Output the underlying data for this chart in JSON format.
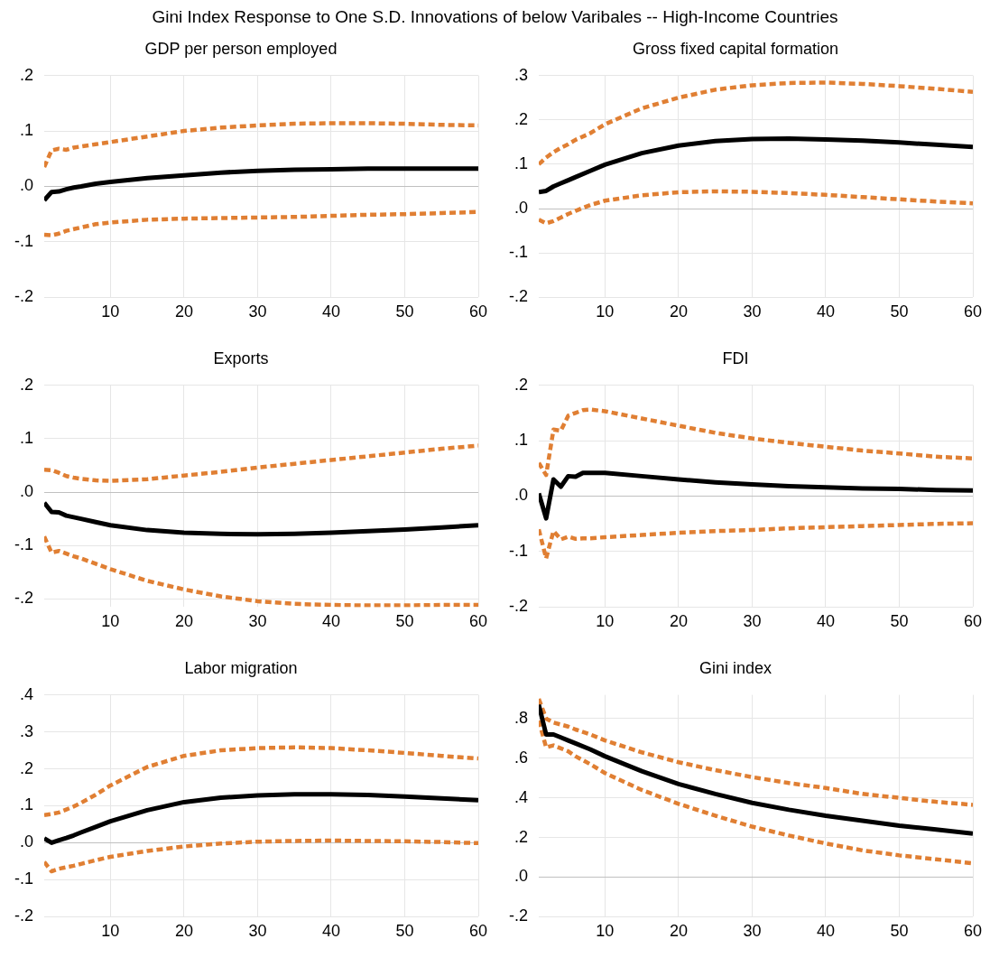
{
  "chart_data": [
    {
      "type": "line",
      "title": "GDP per person employed",
      "annotations": [
        "Gini Index Response to One S.D. Innovations of below Varibales -- High-Income Countries"
      ],
      "x": [
        1,
        2,
        3,
        4,
        5,
        6,
        8,
        10,
        15,
        20,
        25,
        30,
        35,
        40,
        45,
        50,
        55,
        60
      ],
      "xlim": [
        1,
        60
      ],
      "xticks": [
        10,
        20,
        30,
        40,
        50,
        60
      ],
      "ylim": [
        -0.2,
        0.2
      ],
      "yticks": [
        {
          "value": -0.2,
          "label": "-.2"
        },
        {
          "value": -0.1,
          "label": "-.1"
        },
        {
          "value": 0,
          "label": ".0"
        },
        {
          "value": 0.1,
          "label": ".1"
        },
        {
          "value": 0.2,
          "label": ".2"
        }
      ],
      "grid": true,
      "series": [
        {
          "color": "#000000",
          "line_style": "solid",
          "values": [
            -0.025,
            -0.01,
            -0.009,
            -0.005,
            -0.002,
            0.0,
            0.005,
            0.008,
            0.015,
            0.02,
            0.025,
            0.028,
            0.03,
            0.031,
            0.032,
            0.032,
            0.032,
            0.032
          ]
        },
        {
          "color": "#e07f33",
          "line_style": "dashed",
          "values": [
            0.035,
            0.065,
            0.068,
            0.066,
            0.07,
            0.072,
            0.076,
            0.08,
            0.09,
            0.1,
            0.106,
            0.11,
            0.113,
            0.114,
            0.114,
            0.113,
            0.111,
            0.11
          ]
        },
        {
          "color": "#e07f33",
          "line_style": "dashed",
          "values": [
            -0.087,
            -0.088,
            -0.085,
            -0.08,
            -0.077,
            -0.074,
            -0.068,
            -0.065,
            -0.06,
            -0.058,
            -0.057,
            -0.056,
            -0.055,
            -0.053,
            -0.051,
            -0.05,
            -0.048,
            -0.046
          ]
        }
      ]
    },
    {
      "type": "line",
      "title": "Gross fixed capital formation",
      "x": [
        1,
        2,
        3,
        4,
        5,
        6,
        8,
        10,
        15,
        20,
        25,
        30,
        35,
        40,
        45,
        50,
        55,
        60
      ],
      "xlim": [
        1,
        60
      ],
      "xticks": [
        10,
        20,
        30,
        40,
        50,
        60
      ],
      "ylim": [
        -0.2,
        0.3
      ],
      "yticks": [
        {
          "value": -0.2,
          "label": "-.2"
        },
        {
          "value": -0.1,
          "label": "-.1"
        },
        {
          "value": 0,
          "label": ".0"
        },
        {
          "value": 0.1,
          "label": ".1"
        },
        {
          "value": 0.2,
          "label": ".2"
        },
        {
          "value": 0.3,
          "label": ".3"
        }
      ],
      "grid": true,
      "series": [
        {
          "color": "#000000",
          "line_style": "solid",
          "values": [
            0.037,
            0.04,
            0.05,
            0.057,
            0.064,
            0.071,
            0.085,
            0.099,
            0.125,
            0.142,
            0.152,
            0.157,
            0.158,
            0.156,
            0.153,
            0.149,
            0.144,
            0.139
          ]
        },
        {
          "color": "#e07f33",
          "line_style": "dashed",
          "values": [
            0.1,
            0.115,
            0.127,
            0.137,
            0.145,
            0.155,
            0.17,
            0.19,
            0.226,
            0.25,
            0.268,
            0.278,
            0.283,
            0.284,
            0.281,
            0.276,
            0.27,
            0.263
          ]
        },
        {
          "color": "#e07f33",
          "line_style": "dashed",
          "values": [
            -0.025,
            -0.033,
            -0.028,
            -0.02,
            -0.012,
            -0.005,
            0.008,
            0.018,
            0.03,
            0.037,
            0.039,
            0.038,
            0.035,
            0.031,
            0.026,
            0.021,
            0.016,
            0.012
          ]
        }
      ]
    },
    {
      "type": "line",
      "title": "Exports",
      "x": [
        1,
        2,
        3,
        4,
        5,
        6,
        8,
        10,
        15,
        20,
        25,
        30,
        35,
        40,
        45,
        50,
        55,
        60
      ],
      "xlim": [
        1,
        60
      ],
      "xticks": [
        10,
        20,
        30,
        40,
        50,
        60
      ],
      "ylim": [
        -0.215,
        0.2
      ],
      "yticks": [
        {
          "value": -0.2,
          "label": "-.2"
        },
        {
          "value": -0.1,
          "label": "-.1"
        },
        {
          "value": 0,
          "label": ".0"
        },
        {
          "value": 0.1,
          "label": ".1"
        },
        {
          "value": 0.2,
          "label": ".2"
        }
      ],
      "grid": true,
      "series": [
        {
          "color": "#000000",
          "line_style": "solid",
          "values": [
            -0.02,
            -0.037,
            -0.038,
            -0.044,
            -0.047,
            -0.05,
            -0.056,
            -0.062,
            -0.071,
            -0.076,
            -0.078,
            -0.079,
            -0.078,
            -0.076,
            -0.073,
            -0.07,
            -0.066,
            -0.062
          ]
        },
        {
          "color": "#e07f33",
          "line_style": "dashed",
          "values": [
            0.042,
            0.041,
            0.036,
            0.03,
            0.027,
            0.025,
            0.022,
            0.021,
            0.024,
            0.031,
            0.038,
            0.046,
            0.053,
            0.06,
            0.067,
            0.074,
            0.081,
            0.087
          ]
        },
        {
          "color": "#e07f33",
          "line_style": "dashed",
          "values": [
            -0.083,
            -0.113,
            -0.11,
            -0.115,
            -0.12,
            -0.124,
            -0.134,
            -0.144,
            -0.166,
            -0.182,
            -0.195,
            -0.204,
            -0.209,
            -0.211,
            -0.212,
            -0.212,
            -0.211,
            -0.211
          ]
        }
      ]
    },
    {
      "type": "line",
      "title": "FDI",
      "x": [
        1,
        2,
        3,
        4,
        5,
        6,
        7,
        8,
        10,
        15,
        20,
        25,
        30,
        35,
        40,
        45,
        50,
        55,
        60
      ],
      "xlim": [
        1,
        60
      ],
      "xticks": [
        10,
        20,
        30,
        40,
        50,
        60
      ],
      "ylim": [
        -0.2,
        0.2
      ],
      "yticks": [
        {
          "value": -0.2,
          "label": "-.2"
        },
        {
          "value": -0.1,
          "label": "-.1"
        },
        {
          "value": 0,
          "label": ".0"
        },
        {
          "value": 0.1,
          "label": ".1"
        },
        {
          "value": 0.2,
          "label": ".2"
        }
      ],
      "grid": true,
      "series": [
        {
          "color": "#000000",
          "line_style": "solid",
          "values": [
            0.005,
            -0.04,
            0.03,
            0.017,
            0.036,
            0.035,
            0.042,
            0.042,
            0.042,
            0.036,
            0.03,
            0.025,
            0.021,
            0.018,
            0.016,
            0.014,
            0.013,
            0.011,
            0.01
          ]
        },
        {
          "color": "#e07f33",
          "line_style": "dashed",
          "values": [
            0.06,
            0.038,
            0.12,
            0.118,
            0.145,
            0.15,
            0.155,
            0.156,
            0.153,
            0.14,
            0.127,
            0.114,
            0.104,
            0.096,
            0.089,
            0.082,
            0.077,
            0.071,
            0.068
          ]
        },
        {
          "color": "#e07f33",
          "line_style": "dashed",
          "values": [
            -0.06,
            -0.112,
            -0.063,
            -0.078,
            -0.073,
            -0.077,
            -0.076,
            -0.076,
            -0.074,
            -0.07,
            -0.066,
            -0.063,
            -0.061,
            -0.058,
            -0.056,
            -0.054,
            -0.052,
            -0.05,
            -0.049
          ]
        }
      ]
    },
    {
      "type": "line",
      "title": "Labor migration",
      "x": [
        1,
        2,
        3,
        4,
        5,
        6,
        8,
        10,
        15,
        20,
        25,
        30,
        35,
        40,
        45,
        50,
        55,
        60
      ],
      "xlim": [
        1,
        60
      ],
      "xticks": [
        10,
        20,
        30,
        40,
        50,
        60
      ],
      "ylim": [
        -0.2,
        0.4
      ],
      "yticks": [
        {
          "value": -0.2,
          "label": "-.2"
        },
        {
          "value": -0.1,
          "label": "-.1"
        },
        {
          "value": 0,
          "label": ".0"
        },
        {
          "value": 0.1,
          "label": ".1"
        },
        {
          "value": 0.2,
          "label": ".2"
        },
        {
          "value": 0.3,
          "label": ".3"
        },
        {
          "value": 0.4,
          "label": ".4"
        }
      ],
      "grid": true,
      "series": [
        {
          "color": "#000000",
          "line_style": "solid",
          "values": [
            0.012,
            0.0,
            0.007,
            0.013,
            0.02,
            0.028,
            0.043,
            0.058,
            0.088,
            0.11,
            0.122,
            0.128,
            0.131,
            0.131,
            0.129,
            0.125,
            0.12,
            0.115
          ]
        },
        {
          "color": "#e07f33",
          "line_style": "dashed",
          "values": [
            0.075,
            0.078,
            0.082,
            0.09,
            0.098,
            0.108,
            0.13,
            0.155,
            0.205,
            0.235,
            0.25,
            0.256,
            0.258,
            0.256,
            0.25,
            0.243,
            0.235,
            0.228
          ]
        },
        {
          "color": "#e07f33",
          "line_style": "dashed",
          "values": [
            -0.052,
            -0.077,
            -0.07,
            -0.066,
            -0.062,
            -0.057,
            -0.047,
            -0.038,
            -0.022,
            -0.01,
            -0.002,
            0.003,
            0.005,
            0.006,
            0.005,
            0.004,
            0.002,
            -0.001
          ]
        }
      ]
    },
    {
      "type": "line",
      "title": "Gini index",
      "x": [
        1,
        2,
        3,
        4,
        5,
        6,
        8,
        10,
        15,
        20,
        25,
        30,
        35,
        40,
        45,
        50,
        55,
        60
      ],
      "xlim": [
        1,
        60
      ],
      "xticks": [
        10,
        20,
        30,
        40,
        50,
        60
      ],
      "ylim": [
        -0.2,
        0.92
      ],
      "yticks": [
        {
          "value": -0.2,
          "label": "-.2"
        },
        {
          "value": 0,
          "label": ".0"
        },
        {
          "value": 0.2,
          "label": ".2"
        },
        {
          "value": 0.4,
          "label": ".4"
        },
        {
          "value": 0.6,
          "label": ".6"
        },
        {
          "value": 0.8,
          "label": ".8"
        }
      ],
      "grid": true,
      "series": [
        {
          "color": "#000000",
          "line_style": "solid",
          "values": [
            0.87,
            0.72,
            0.72,
            0.705,
            0.69,
            0.675,
            0.645,
            0.61,
            0.535,
            0.47,
            0.42,
            0.375,
            0.34,
            0.31,
            0.285,
            0.26,
            0.24,
            0.22
          ]
        },
        {
          "color": "#e07f33",
          "line_style": "dashed",
          "values": [
            0.9,
            0.8,
            0.78,
            0.77,
            0.76,
            0.745,
            0.72,
            0.69,
            0.63,
            0.58,
            0.54,
            0.505,
            0.475,
            0.45,
            0.42,
            0.4,
            0.38,
            0.365
          ]
        },
        {
          "color": "#e07f33",
          "line_style": "dashed",
          "values": [
            0.79,
            0.655,
            0.665,
            0.65,
            0.635,
            0.61,
            0.57,
            0.525,
            0.44,
            0.37,
            0.31,
            0.255,
            0.21,
            0.17,
            0.135,
            0.11,
            0.09,
            0.07
          ]
        }
      ]
    }
  ]
}
